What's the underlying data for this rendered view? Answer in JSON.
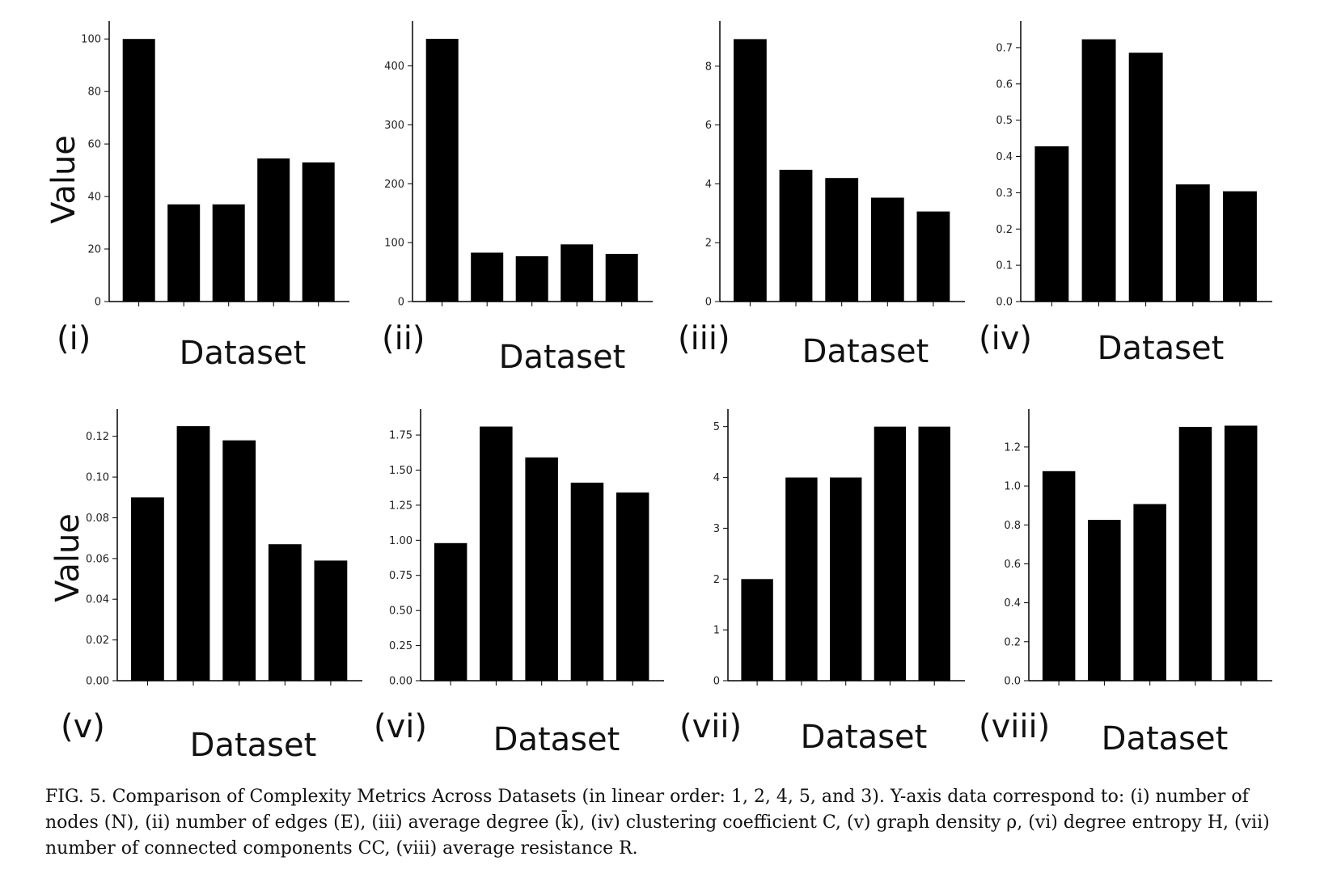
{
  "figure": {
    "caption": "FIG. 5. Comparison of Complexity Metrics Across Datasets (in linear order: 1, 2, 4, 5, and 3). Y-axis data correspond to: (i) number of nodes (N), (ii) number of edges (E), (iii) average degree (k̄), (iv) clustering coefficient C, (v) graph density ρ, (vi) degree entropy H, (vii) number of connected components CC, (viii) average resistance R.",
    "bar_color": "#000000"
  },
  "chart_data": [
    {
      "type": "bar",
      "panel": "(i)",
      "xlabel": "Dataset",
      "ylabel": "Value",
      "values": [
        100,
        37,
        37,
        54.5,
        53
      ],
      "ylim": [
        0,
        105
      ],
      "ticks": [
        0,
        20,
        40,
        60,
        80,
        100
      ],
      "tick_labels": [
        "0",
        "20",
        "40",
        "60",
        "80",
        "100"
      ]
    },
    {
      "type": "bar",
      "panel": "(ii)",
      "xlabel": "Dataset",
      "ylabel": "",
      "values": [
        446,
        83,
        77,
        97,
        81
      ],
      "ylim": [
        0,
        468
      ],
      "ticks": [
        0,
        100,
        200,
        300,
        400
      ],
      "tick_labels": [
        "0",
        "100",
        "200",
        "300",
        "400"
      ]
    },
    {
      "type": "bar",
      "panel": "(iii)",
      "xlabel": "Dataset",
      "ylabel": "",
      "values": [
        8.92,
        4.48,
        4.2,
        3.53,
        3.06
      ],
      "ylim": [
        0,
        9.37
      ],
      "ticks": [
        0,
        2,
        4,
        6,
        8
      ],
      "tick_labels": [
        "0",
        "2",
        "4",
        "6",
        "8"
      ]
    },
    {
      "type": "bar",
      "panel": "(iv)",
      "xlabel": "Dataset",
      "ylabel": "",
      "values": [
        0.428,
        0.723,
        0.686,
        0.323,
        0.304
      ],
      "ylim": [
        0,
        0.76
      ],
      "ticks": [
        0,
        0.1,
        0.2,
        0.3,
        0.4,
        0.5,
        0.6,
        0.7
      ],
      "tick_labels": [
        "0.0",
        "0.1",
        "0.2",
        "0.3",
        "0.4",
        "0.5",
        "0.6",
        "0.7"
      ]
    },
    {
      "type": "bar",
      "panel": "(v)",
      "xlabel": "Dataset",
      "ylabel": "Value",
      "values": [
        0.09,
        0.125,
        0.118,
        0.067,
        0.059
      ],
      "ylim": [
        0,
        0.131
      ],
      "ticks": [
        0,
        0.02,
        0.04,
        0.06,
        0.08,
        0.1,
        0.12
      ],
      "tick_labels": [
        "0.00",
        "0.02",
        "0.04",
        "0.06",
        "0.08",
        "0.10",
        "0.12"
      ]
    },
    {
      "type": "bar",
      "panel": "(vi)",
      "xlabel": "Dataset",
      "ylabel": "",
      "values": [
        0.98,
        1.81,
        1.59,
        1.41,
        1.34
      ],
      "ylim": [
        0,
        1.9
      ],
      "ticks": [
        0,
        0.25,
        0.5,
        0.75,
        1.0,
        1.25,
        1.5,
        1.75
      ],
      "tick_labels": [
        "0.00",
        "0.25",
        "0.50",
        "0.75",
        "1.00",
        "1.25",
        "1.50",
        "1.75"
      ]
    },
    {
      "type": "bar",
      "panel": "(vii)",
      "xlabel": "Dataset",
      "ylabel": "",
      "values": [
        2,
        4,
        4,
        5,
        5
      ],
      "ylim": [
        0,
        5.25
      ],
      "ticks": [
        0,
        1,
        2,
        3,
        4,
        5
      ],
      "tick_labels": [
        "0",
        "1",
        "2",
        "3",
        "4",
        "5"
      ]
    },
    {
      "type": "bar",
      "panel": "(viii)",
      "xlabel": "Dataset",
      "ylabel": "",
      "values": [
        1.076,
        0.826,
        0.907,
        1.303,
        1.31
      ],
      "ylim": [
        0,
        1.37
      ],
      "ticks": [
        0,
        0.2,
        0.4,
        0.6,
        0.8,
        1.0,
        1.2
      ],
      "tick_labels": [
        "0.0",
        "0.2",
        "0.4",
        "0.6",
        "0.8",
        "1.0",
        "1.2"
      ]
    }
  ]
}
